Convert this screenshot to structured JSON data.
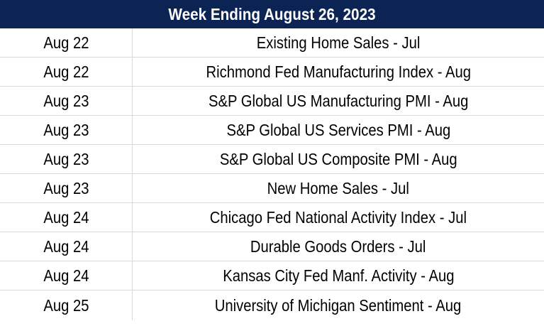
{
  "title": "Week Ending August 26, 2023",
  "rows": [
    {
      "date": "Aug 22",
      "event": "Existing Home Sales - Jul"
    },
    {
      "date": "Aug 22",
      "event": "Richmond Fed Manufacturing Index - Aug"
    },
    {
      "date": "Aug 23",
      "event": "S&P Global US Manufacturing PMI - Aug"
    },
    {
      "date": "Aug 23",
      "event": "S&P Global US Services PMI - Aug"
    },
    {
      "date": "Aug 23",
      "event": "S&P Global US Composite PMI - Aug"
    },
    {
      "date": "Aug 23",
      "event": "New Home Sales - Jul"
    },
    {
      "date": "Aug 24",
      "event": "Chicago Fed National Activity Index - Jul"
    },
    {
      "date": "Aug 24",
      "event": "Durable Goods Orders - Jul"
    },
    {
      "date": "Aug 24",
      "event": "Kansas City Fed Manf. Activity - Aug"
    },
    {
      "date": "Aug 25",
      "event": "University of Michigan Sentiment - Aug"
    }
  ],
  "colors": {
    "header_background": "#0c2454",
    "header_text": "#ffffff",
    "grid_line": "#d9d9d9"
  }
}
